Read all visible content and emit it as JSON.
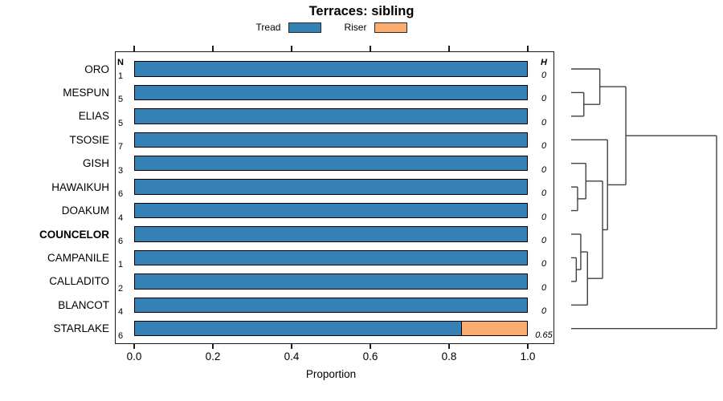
{
  "title": "Terraces: sibling",
  "colors": {
    "tread": "#3580B4",
    "riser": "#FBAD70",
    "bar_border": "#000000",
    "axis": "#1c1c1c",
    "dendro_line": "#404040"
  },
  "chart_data": {
    "type": "bar",
    "orientation": "horizontal",
    "stacked": true,
    "title": "Terraces: sibling",
    "xlabel": "Proportion",
    "xlim": [
      0.0,
      1.0
    ],
    "x_ticks": [
      "0.0",
      "0.2",
      "0.4",
      "0.6",
      "0.8",
      "1.0"
    ],
    "x_tick_values": [
      0.0,
      0.2,
      0.4,
      0.6,
      0.8,
      1.0
    ],
    "legend_position": "top",
    "legend": [
      {
        "label": "Tread",
        "color": "#3580B4"
      },
      {
        "label": "Riser",
        "color": "#FBAD70"
      }
    ],
    "columns": {
      "n_header": "N",
      "h_header": "H"
    },
    "rows": [
      {
        "label": "ORO",
        "n": "1",
        "h": "0",
        "tread": 1.0,
        "riser": 0.0,
        "bold": false
      },
      {
        "label": "MESPUN",
        "n": "5",
        "h": "0",
        "tread": 1.0,
        "riser": 0.0,
        "bold": false
      },
      {
        "label": "ELIAS",
        "n": "5",
        "h": "0",
        "tread": 1.0,
        "riser": 0.0,
        "bold": false
      },
      {
        "label": "TSOSIE",
        "n": "7",
        "h": "0",
        "tread": 1.0,
        "riser": 0.0,
        "bold": false
      },
      {
        "label": "GISH",
        "n": "3",
        "h": "0",
        "tread": 1.0,
        "riser": 0.0,
        "bold": false
      },
      {
        "label": "HAWAIKUH",
        "n": "6",
        "h": "0",
        "tread": 1.0,
        "riser": 0.0,
        "bold": false
      },
      {
        "label": "DOAKUM",
        "n": "4",
        "h": "0",
        "tread": 1.0,
        "riser": 0.0,
        "bold": false
      },
      {
        "label": "COUNCELOR",
        "n": "6",
        "h": "0",
        "tread": 1.0,
        "riser": 0.0,
        "bold": true
      },
      {
        "label": "CAMPANILE",
        "n": "1",
        "h": "0",
        "tread": 1.0,
        "riser": 0.0,
        "bold": false
      },
      {
        "label": "CALLADITO",
        "n": "2",
        "h": "0",
        "tread": 1.0,
        "riser": 0.0,
        "bold": false
      },
      {
        "label": "BLANCOT",
        "n": "4",
        "h": "0",
        "tread": 1.0,
        "riser": 0.0,
        "bold": false
      },
      {
        "label": "STARLAKE",
        "n": "6",
        "h": "0.65",
        "tread": 0.8333,
        "riser": 0.1667,
        "bold": false
      }
    ],
    "dendrogram": {
      "leaf_order": [
        "ORO",
        "MESPUN",
        "ELIAS",
        "TSOSIE",
        "GISH",
        "HAWAIKUH",
        "DOAKUM",
        "COUNCELOR",
        "CAMPANILE",
        "CALLADITO",
        "BLANCOT",
        "STARLAKE"
      ],
      "merges": [
        {
          "id": "m1",
          "a": "MESPUN",
          "b": "ELIAS",
          "height": 0.087
        },
        {
          "id": "m2",
          "a": "ORO",
          "b": "m1",
          "height": 0.197
        },
        {
          "id": "m3",
          "a": "HAWAIKUH",
          "b": "DOAKUM",
          "height": 0.044
        },
        {
          "id": "m4",
          "a": "GISH",
          "b": "m3",
          "height": 0.101
        },
        {
          "id": "m5",
          "a": "CAMPANILE",
          "b": "CALLADITO",
          "height": 0.035
        },
        {
          "id": "m6",
          "a": "COUNCELOR",
          "b": "m5",
          "height": 0.066
        },
        {
          "id": "m7",
          "a": "m6",
          "b": "BLANCOT",
          "height": 0.112
        },
        {
          "id": "m8",
          "a": "m4",
          "b": "m7",
          "height": 0.216
        },
        {
          "id": "m9",
          "a": "TSOSIE",
          "b": "m8",
          "height": 0.25
        },
        {
          "id": "m10",
          "a": "m2",
          "b": "m9",
          "height": 0.376
        },
        {
          "id": "m11",
          "a": "m10",
          "b": "STARLAKE",
          "height": 1.0
        }
      ]
    }
  }
}
